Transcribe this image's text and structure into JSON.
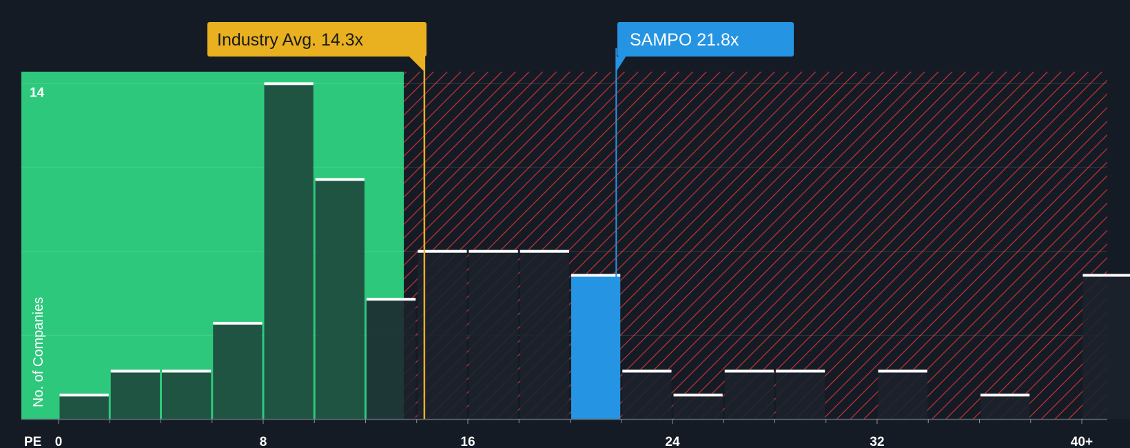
{
  "chart_data": {
    "type": "bar",
    "xlabel": "PE",
    "ylabel": "No. of Companies",
    "x_ticks": [
      "0",
      "8",
      "16",
      "24",
      "32",
      "40+"
    ],
    "x_tick_values": [
      0,
      8,
      16,
      24,
      32,
      40
    ],
    "y_tick_label": "14",
    "y_tick_value": 14,
    "xlim": [
      -1.5,
      41
    ],
    "ylim": [
      0,
      14.5
    ],
    "bin_width": 2,
    "bin_starts": [
      0,
      2,
      4,
      6,
      8,
      10,
      12,
      14,
      16,
      18,
      20,
      22,
      24,
      26,
      28,
      30,
      32,
      34,
      36,
      38,
      40
    ],
    "values": [
      1,
      2,
      2,
      4,
      14,
      10,
      5,
      7,
      7,
      7,
      6,
      2,
      1,
      2,
      2,
      0,
      2,
      0,
      1,
      0,
      6
    ],
    "highlight_bin_start": 20,
    "fair_region_max": 13.5,
    "industry_avg": {
      "label": "Industry Avg. 14.3x",
      "value": 14.3
    },
    "company": {
      "label": "SAMPO 21.8x",
      "value": 21.8
    },
    "colors": {
      "background": "#151b24",
      "fair_region": "#2ec87c",
      "bar_in_fair": "#1e4a3e",
      "bar_over": "#1b222c",
      "highlight_bar": "#2594e3",
      "hatch": "#d8363a",
      "industry_callout": "#e9b020",
      "company_callout": "#2594e3",
      "bar_cap": "#ffffff"
    }
  }
}
